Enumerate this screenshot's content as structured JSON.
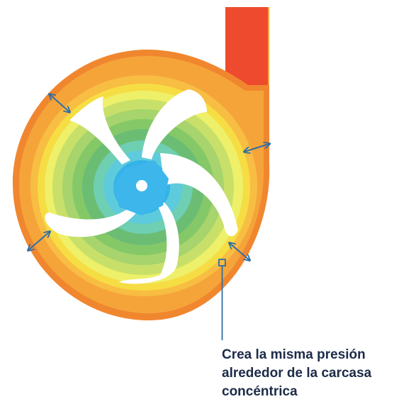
{
  "caption": {
    "line1": "Crea la misma presión",
    "line2": "alrededor de la carcasa",
    "line3": "concéntrica"
  },
  "colors": {
    "outer_casing": "#f0872f",
    "orange": "#f5a43a",
    "orange_light": "#f8bd43",
    "yellow": "#f6dd43",
    "yellow_light": "#eef06a",
    "lime": "#c8e06a",
    "green_light": "#a7d46c",
    "green": "#85c868",
    "green_mid": "#6cbd74",
    "teal": "#6fcfb2",
    "cyan": "#5ecbdc",
    "blue": "#34b3e8",
    "hub": "#3db6ec",
    "discharge_red": "#ee4a2d",
    "vane": "#ffffff",
    "arrow": "#2f6fa8",
    "leader": "#2f6fa8",
    "caption_text": "#1c2b47"
  },
  "icons": [
    "double-arrow-icon",
    "pressure-probe-marker"
  ]
}
